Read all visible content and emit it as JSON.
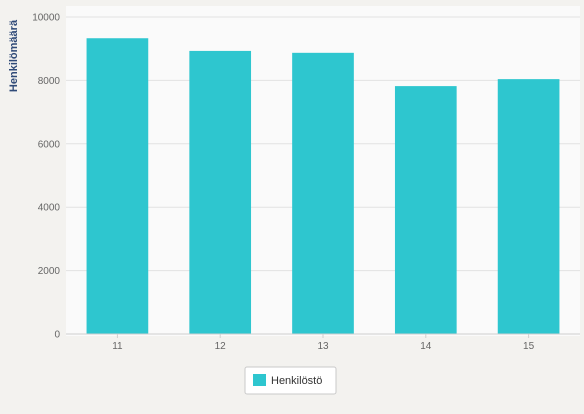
{
  "chart_data": {
    "type": "bar",
    "categories": [
      "11",
      "12",
      "13",
      "14",
      "15"
    ],
    "series": [
      {
        "name": "Henkilöstö",
        "values": [
          9330,
          8930,
          8870,
          7820,
          8040
        ],
        "color": "#2ec6cf"
      }
    ],
    "ylabel": "Henkilömäärä",
    "ylim": [
      0,
      10000
    ],
    "yticks": [
      0,
      2000,
      4000,
      6000,
      8000,
      10000
    ],
    "grid": true,
    "legend": "bottom-center"
  }
}
